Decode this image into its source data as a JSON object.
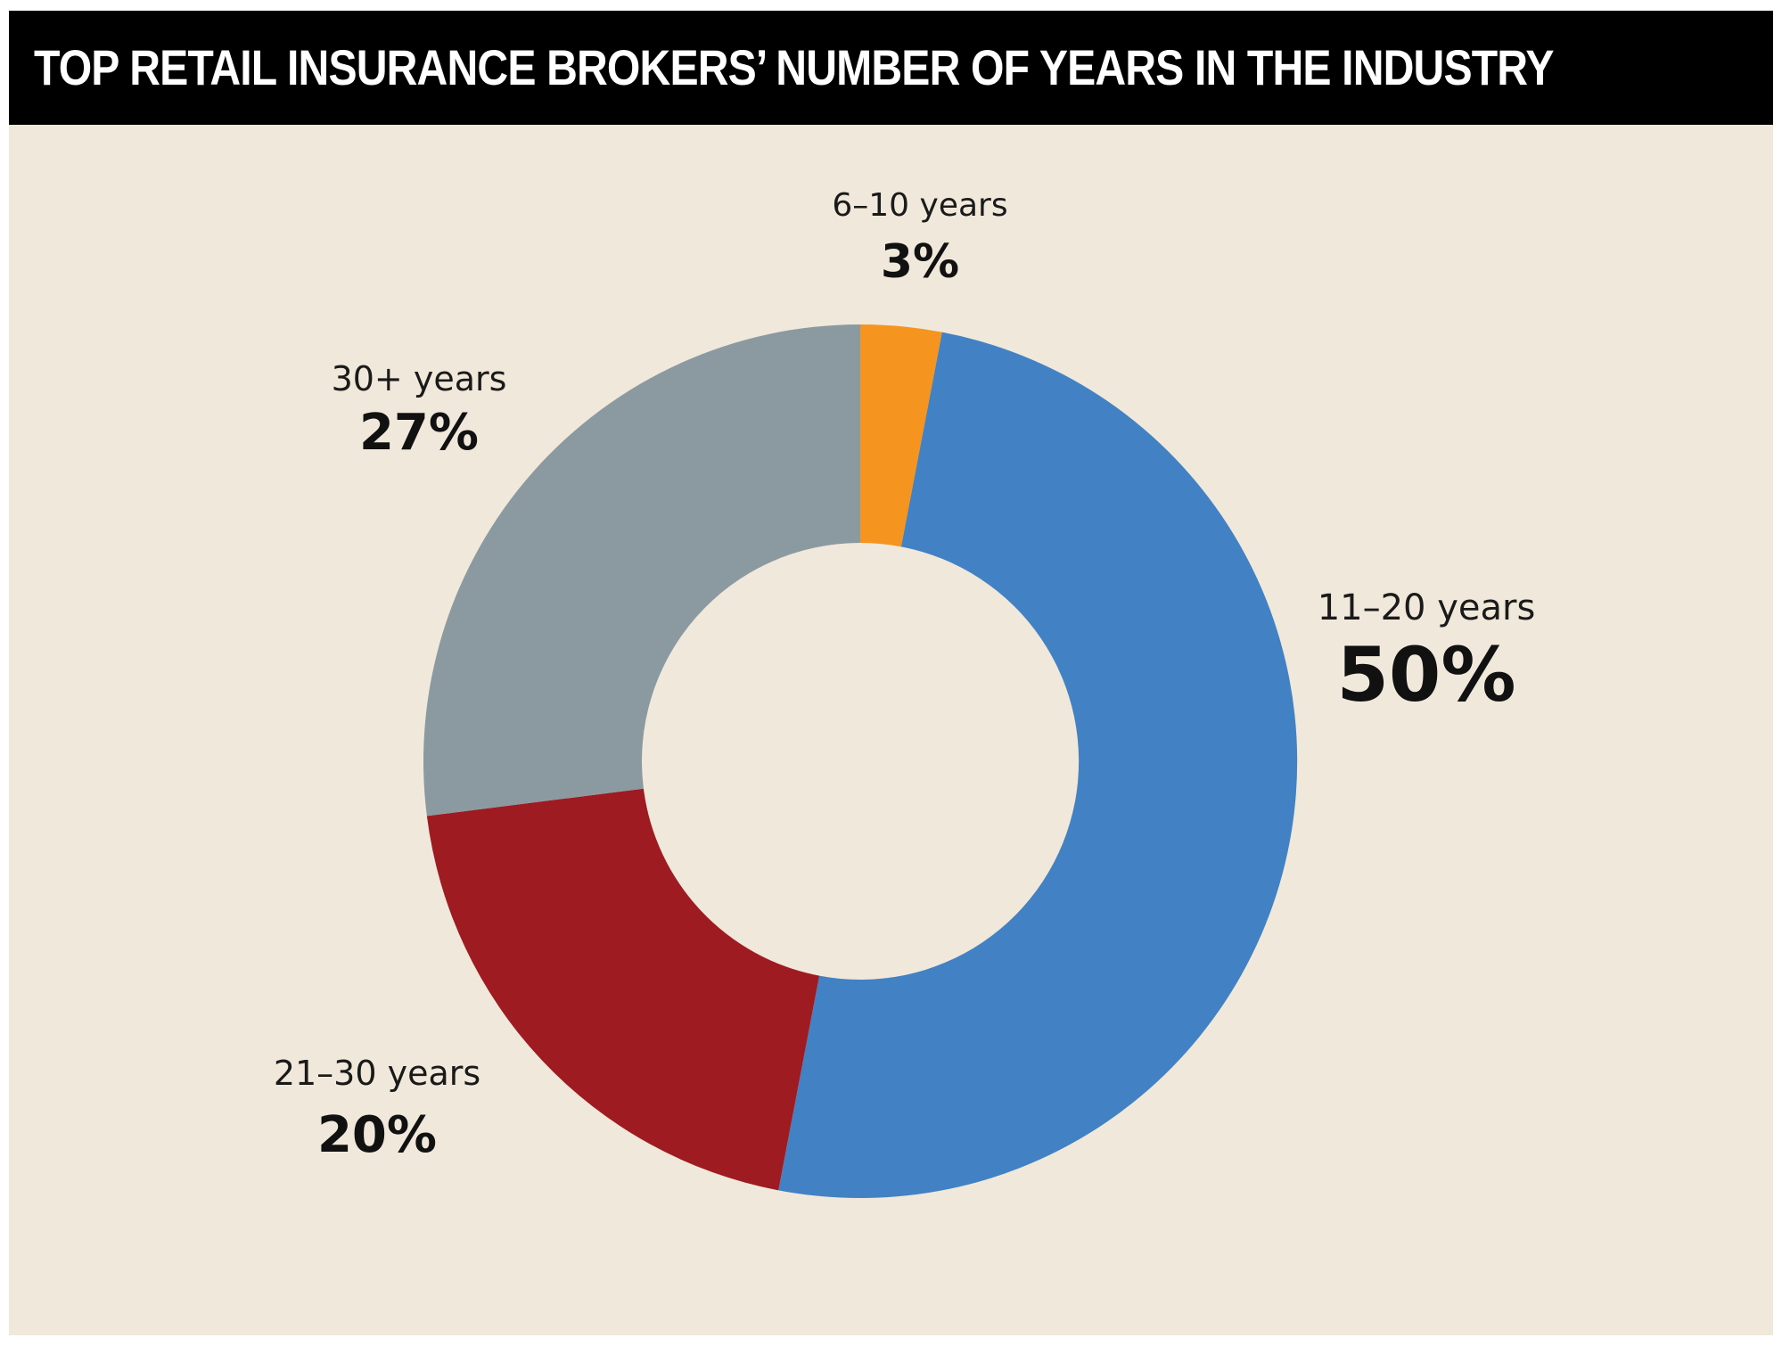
{
  "header": {
    "title": "TOP RETAIL INSURANCE BROKERS’ NUMBER OF YEARS IN THE INDUSTRY"
  },
  "colors": {
    "background": "#f0e8da",
    "header_bg": "#000000",
    "header_text": "#ffffff"
  },
  "chart_data": {
    "type": "pie",
    "variant": "donut",
    "title": "TOP RETAIL INSURANCE BROKERS’ NUMBER OF YEARS IN THE INDUSTRY",
    "start": "12 o'clock",
    "direction": "clockwise",
    "slices": [
      {
        "label": "6–10 years",
        "value": 3,
        "value_label": "3%",
        "color": "#f5951f"
      },
      {
        "label": "11–20 years",
        "value": 50,
        "value_label": "50%",
        "color": "#4282c4"
      },
      {
        "label": "21–30 years",
        "value": 20,
        "value_label": "20%",
        "color": "#9e1b22"
      },
      {
        "label": "30+ years",
        "value": 27,
        "value_label": "27%",
        "color": "#8b99a1"
      }
    ]
  }
}
